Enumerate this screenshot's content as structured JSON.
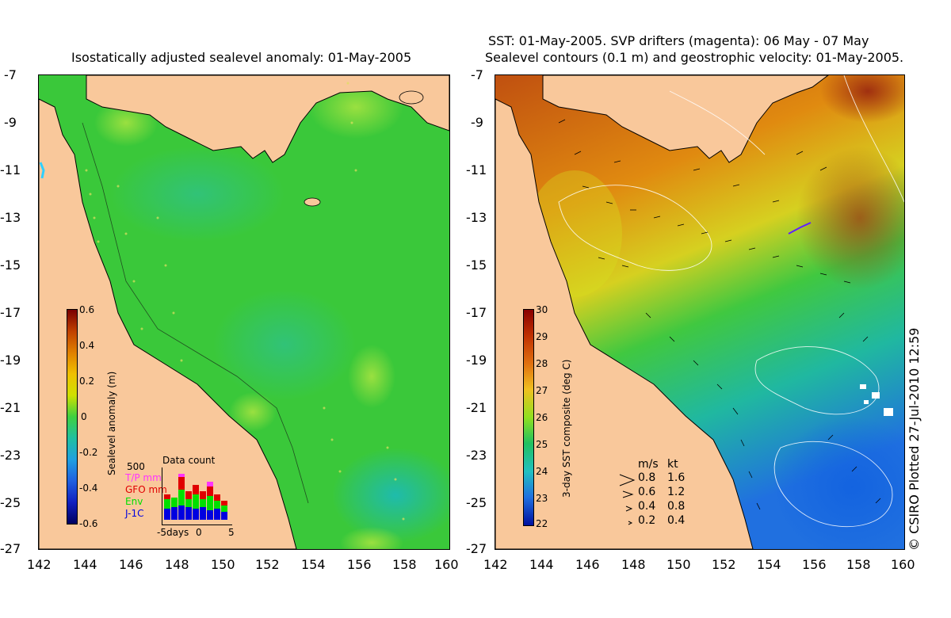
{
  "left_panel": {
    "title": "Isostatically adjusted sealevel anomaly: 01-May-2005",
    "y_ticks": [
      "-7",
      "-9",
      "-11",
      "-13",
      "-15",
      "-17",
      "-19",
      "-21",
      "-23",
      "-25",
      "-27"
    ],
    "x_ticks": [
      "142",
      "144",
      "146",
      "148",
      "150",
      "152",
      "154",
      "156",
      "158",
      "160"
    ],
    "colorbar": {
      "label": "Sealevel anomaly (m)",
      "ticks": [
        "0.6",
        "0.4",
        "0.2",
        "0",
        "-0.2",
        "-0.4",
        "-0.6"
      ],
      "range": [
        -0.6,
        0.6
      ]
    },
    "data_count": {
      "title": "Data count",
      "max_label": "500",
      "legend": [
        {
          "label": "T/P mm",
          "color": "#ff33ff"
        },
        {
          "label": "GFO mm",
          "color": "#e00000"
        },
        {
          "label": "Env",
          "color": "#00e000"
        },
        {
          "label": "J-1C",
          "color": "#0000e0"
        }
      ],
      "x_labels": [
        "-5days",
        "0",
        "5"
      ]
    }
  },
  "right_panel": {
    "title_line1": "SST: 01-May-2005. SVP drifters (magenta): 06 May - 07 May",
    "title_line2": "Sealevel contours (0.1 m) and geostrophic velocity: 01-May-2005.",
    "y_ticks": [
      "-7",
      "-9",
      "-11",
      "-13",
      "-15",
      "-17",
      "-19",
      "-21",
      "-23",
      "-25",
      "-27"
    ],
    "x_ticks": [
      "142",
      "144",
      "146",
      "148",
      "150",
      "152",
      "154",
      "156",
      "158",
      "160"
    ],
    "colorbar": {
      "label": "3-day SST composite (deg C)",
      "ticks": [
        "30",
        "29",
        "28",
        "27",
        "26",
        "25",
        "24",
        "23",
        "22"
      ],
      "range": [
        22,
        30
      ]
    },
    "velocity_legend": {
      "header_ms": "m/s",
      "header_kt": "kt",
      "rows": [
        {
          "ms": "0.8",
          "kt": "1.6"
        },
        {
          "ms": "0.6",
          "kt": "1.2"
        },
        {
          "ms": "0.4",
          "kt": "0.8"
        },
        {
          "ms": "0.2",
          "kt": "0.4"
        }
      ]
    }
  },
  "credit": "© CSIRO Plotted 27-Jul-2010 12:59",
  "colors": {
    "land": "#f9c89b",
    "ocean_anomaly_zero": "#33cc33",
    "contour": "#ffffff"
  }
}
